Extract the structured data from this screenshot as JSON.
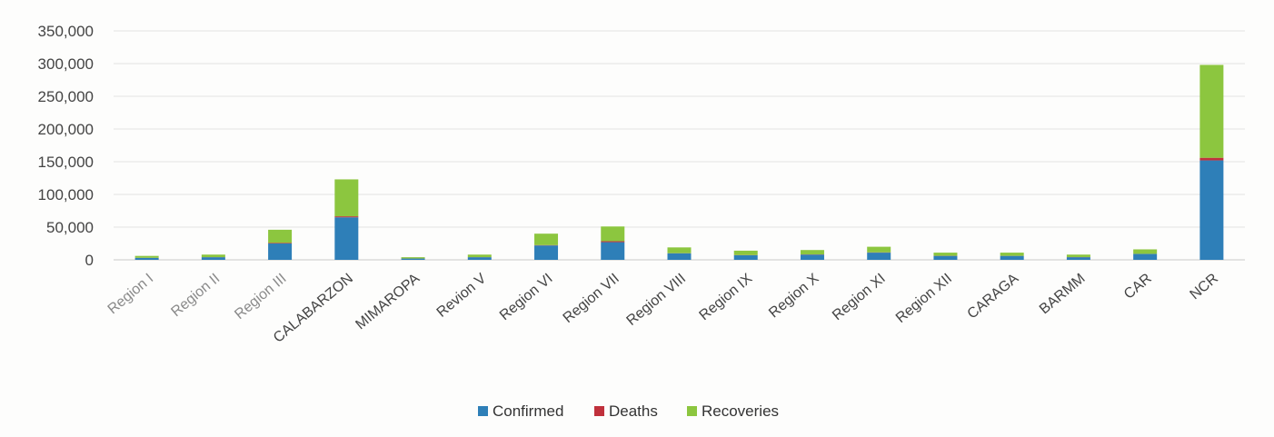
{
  "chart_data": {
    "type": "bar",
    "stacked": true,
    "title": "",
    "xlabel": "",
    "ylabel": "",
    "ylim": [
      0,
      350000
    ],
    "yticks": [
      0,
      50000,
      100000,
      150000,
      200000,
      250000,
      300000,
      350000
    ],
    "ytick_labels": [
      "0",
      "50,000",
      "100,000",
      "150,000",
      "200,000",
      "250,000",
      "300,000",
      "350,000"
    ],
    "grid": true,
    "legend_position": "bottom",
    "categories": [
      "Region I",
      "Region II",
      "Region III",
      "CALABARZON",
      "MIMAROPA",
      "Revion V",
      "Region VI",
      "Region VII",
      "Region VIII",
      "Region IX",
      "Region X",
      "Region XI",
      "Region XII",
      "CARAGA",
      "BARMM",
      "CAR",
      "NCR"
    ],
    "series": [
      {
        "name": "Confirmed",
        "color": "#2e7fb8",
        "values": [
          3000,
          4000,
          25000,
          65000,
          2000,
          4000,
          22000,
          27000,
          10000,
          7000,
          8000,
          11000,
          6000,
          6000,
          4000,
          9000,
          152000
        ]
      },
      {
        "name": "Deaths",
        "color": "#c0313c",
        "values": [
          100,
          100,
          1000,
          1500,
          50,
          100,
          500,
          1500,
          150,
          300,
          300,
          400,
          200,
          100,
          200,
          150,
          4000
        ]
      },
      {
        "name": "Recoveries",
        "color": "#8cc63f",
        "values": [
          2900,
          3900,
          20000,
          56500,
          1950,
          3900,
          17500,
          22500,
          8850,
          6700,
          6700,
          8600,
          4800,
          4900,
          3800,
          6850,
          142000
        ]
      }
    ]
  }
}
